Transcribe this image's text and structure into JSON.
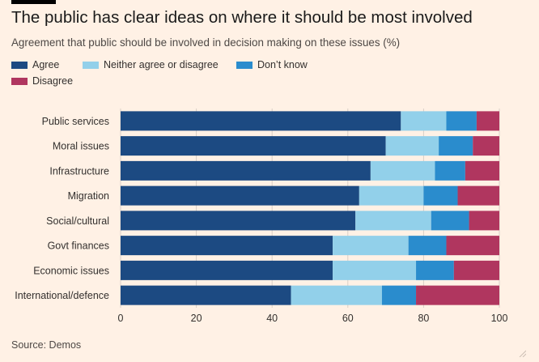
{
  "title": "The public has clear ideas on where it should be most involved",
  "subtitle": "Agreement that public should be involved in decision making on these issues (%)",
  "source": "Source: Demos",
  "colors": {
    "background": "#fff1e5",
    "grid": "#d9cfc6",
    "agree": "#1c4a82",
    "neither": "#92d0ea",
    "dont_know": "#2a8ccd",
    "disagree": "#b0365f"
  },
  "chart_data": {
    "type": "bar",
    "orientation": "horizontal",
    "stacked": true,
    "title": "The public has clear ideas on where it should be most involved",
    "subtitle": "Agreement that public should be involved in decision making on these issues (%)",
    "xlabel": "",
    "ylabel": "",
    "xlim": [
      0,
      100
    ],
    "xticks": [
      0,
      20,
      40,
      60,
      80,
      100
    ],
    "grid": true,
    "legend_position": "top-left",
    "categories": [
      "Public services",
      "Moral issues",
      "Infrastructure",
      "Migration",
      "Social/cultural",
      "Govt finances",
      "Economic issues",
      "International/defence"
    ],
    "series": [
      {
        "name": "Agree",
        "color": "#1c4a82",
        "values": [
          74,
          70,
          66,
          63,
          62,
          56,
          56,
          45
        ]
      },
      {
        "name": "Neither agree or disagree",
        "color": "#92d0ea",
        "values": [
          12,
          14,
          17,
          17,
          20,
          20,
          22,
          24
        ]
      },
      {
        "name": "Don’t know",
        "color": "#2a8ccd",
        "values": [
          8,
          9,
          8,
          9,
          10,
          10,
          10,
          9
        ]
      },
      {
        "name": "Disagree",
        "color": "#b0365f",
        "values": [
          6,
          7,
          9,
          11,
          8,
          14,
          12,
          22
        ]
      }
    ]
  }
}
